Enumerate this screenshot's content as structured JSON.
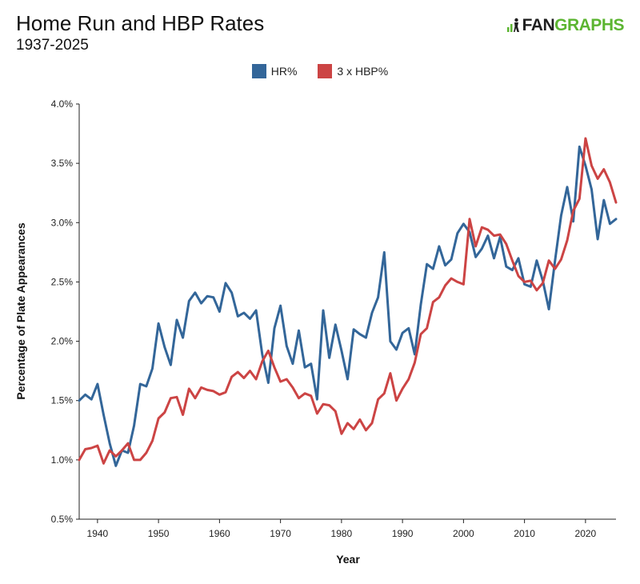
{
  "header": {
    "title": "Home Run and HBP Rates",
    "subtitle": "1937-2025"
  },
  "logo": {
    "part1": "FAN",
    "part2": "GRAPHS",
    "brand_green": "#5cb531"
  },
  "chart_data": {
    "type": "line",
    "title": "Home Run and HBP Rates",
    "subtitle": "1937-2025",
    "xlabel": "Year",
    "ylabel": "Percentage of Plate Appearances",
    "xlim": [
      1937,
      2025
    ],
    "ylim": [
      0.5,
      4.0
    ],
    "x_ticks": [
      1940,
      1950,
      1960,
      1970,
      1980,
      1990,
      2000,
      2010,
      2020
    ],
    "y_ticks": [
      0.5,
      1.0,
      1.5,
      2.0,
      2.5,
      3.0,
      3.5,
      4.0
    ],
    "y_tick_labels": [
      "0.5%",
      "1.0%",
      "1.5%",
      "2.0%",
      "2.5%",
      "3.0%",
      "3.5%",
      "4.0%"
    ],
    "legend_position": "top-center",
    "grid": false,
    "x": [
      1937,
      1938,
      1939,
      1940,
      1941,
      1942,
      1943,
      1944,
      1945,
      1946,
      1947,
      1948,
      1949,
      1950,
      1951,
      1952,
      1953,
      1954,
      1955,
      1956,
      1957,
      1958,
      1959,
      1960,
      1961,
      1962,
      1963,
      1964,
      1965,
      1966,
      1967,
      1968,
      1969,
      1970,
      1971,
      1972,
      1973,
      1974,
      1975,
      1976,
      1977,
      1978,
      1979,
      1980,
      1981,
      1982,
      1983,
      1984,
      1985,
      1986,
      1987,
      1988,
      1989,
      1990,
      1991,
      1992,
      1993,
      1994,
      1995,
      1996,
      1997,
      1998,
      1999,
      2000,
      2001,
      2002,
      2003,
      2004,
      2005,
      2006,
      2007,
      2008,
      2009,
      2010,
      2011,
      2012,
      2013,
      2014,
      2015,
      2016,
      2017,
      2018,
      2019,
      2020,
      2021,
      2022,
      2023,
      2024,
      2025
    ],
    "series": [
      {
        "name": "HR%",
        "color": "#336699",
        "values": [
          1.5,
          1.55,
          1.51,
          1.64,
          1.38,
          1.14,
          0.95,
          1.08,
          1.06,
          1.29,
          1.64,
          1.62,
          1.77,
          2.15,
          1.95,
          1.8,
          2.18,
          2.03,
          2.34,
          2.41,
          2.32,
          2.38,
          2.37,
          2.25,
          2.49,
          2.41,
          2.21,
          2.24,
          2.19,
          2.26,
          1.89,
          1.65,
          2.11,
          2.3,
          1.96,
          1.81,
          2.09,
          1.78,
          1.81,
          1.51,
          2.26,
          1.86,
          2.14,
          1.92,
          1.68,
          2.1,
          2.06,
          2.03,
          2.24,
          2.37,
          2.75,
          2.0,
          1.93,
          2.07,
          2.11,
          1.89,
          2.31,
          2.65,
          2.61,
          2.8,
          2.64,
          2.69,
          2.91,
          2.99,
          2.92,
          2.71,
          2.78,
          2.89,
          2.7,
          2.88,
          2.63,
          2.6,
          2.7,
          2.48,
          2.46,
          2.68,
          2.51,
          2.27,
          2.68,
          3.06,
          3.3,
          3.01,
          3.64,
          3.48,
          3.28,
          2.86,
          3.19,
          2.99,
          3.03
        ]
      },
      {
        "name": "3 x HBP%",
        "color": "#cc4444",
        "values": [
          1.0,
          1.09,
          1.1,
          1.12,
          0.97,
          1.08,
          1.03,
          1.08,
          1.14,
          1.0,
          1.0,
          1.06,
          1.16,
          1.35,
          1.4,
          1.52,
          1.53,
          1.38,
          1.6,
          1.52,
          1.61,
          1.59,
          1.58,
          1.55,
          1.57,
          1.7,
          1.74,
          1.69,
          1.75,
          1.68,
          1.83,
          1.92,
          1.78,
          1.66,
          1.68,
          1.61,
          1.52,
          1.56,
          1.54,
          1.39,
          1.47,
          1.46,
          1.41,
          1.22,
          1.31,
          1.26,
          1.34,
          1.25,
          1.31,
          1.51,
          1.56,
          1.73,
          1.5,
          1.6,
          1.68,
          1.82,
          2.06,
          2.11,
          2.33,
          2.37,
          2.47,
          2.53,
          2.5,
          2.48,
          3.03,
          2.8,
          2.96,
          2.94,
          2.89,
          2.9,
          2.82,
          2.68,
          2.55,
          2.5,
          2.51,
          2.43,
          2.49,
          2.68,
          2.61,
          2.69,
          2.85,
          3.1,
          3.2,
          3.71,
          3.48,
          3.37,
          3.45,
          3.34,
          3.17
        ]
      }
    ]
  }
}
